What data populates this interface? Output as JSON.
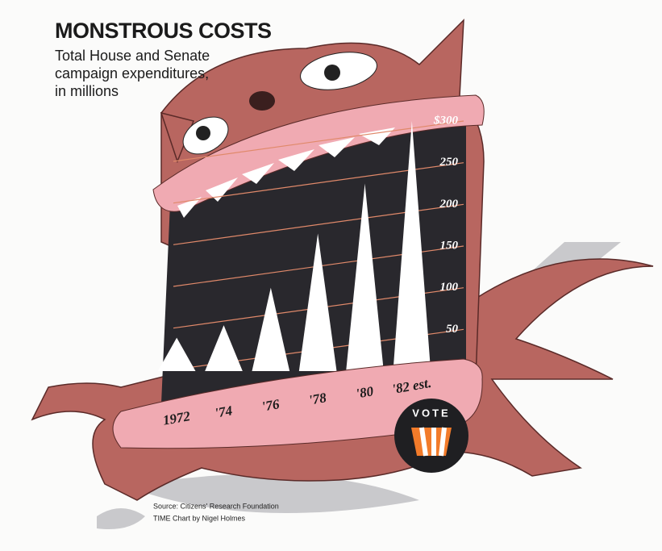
{
  "chart_data": {
    "type": "bar",
    "title": "MONSTROUS COSTS",
    "subtitle": [
      "Total House and Senate",
      "campaign expenditures,",
      "in millions"
    ],
    "categories": [
      "1972",
      "'74",
      "'76",
      "'78",
      "'80",
      "'82 est."
    ],
    "values": [
      40,
      55,
      100,
      165,
      225,
      300
    ],
    "color": "#ffffff",
    "ylim": [
      0,
      300
    ],
    "yticks": [
      50,
      100,
      150,
      200,
      250,
      {
        "value": 300,
        "label": "$300"
      }
    ],
    "grid": true,
    "badge": "VOTE",
    "source": "Source: Citizens' Research Foundation",
    "credit": "TIME Chart by Nigel Holmes"
  }
}
